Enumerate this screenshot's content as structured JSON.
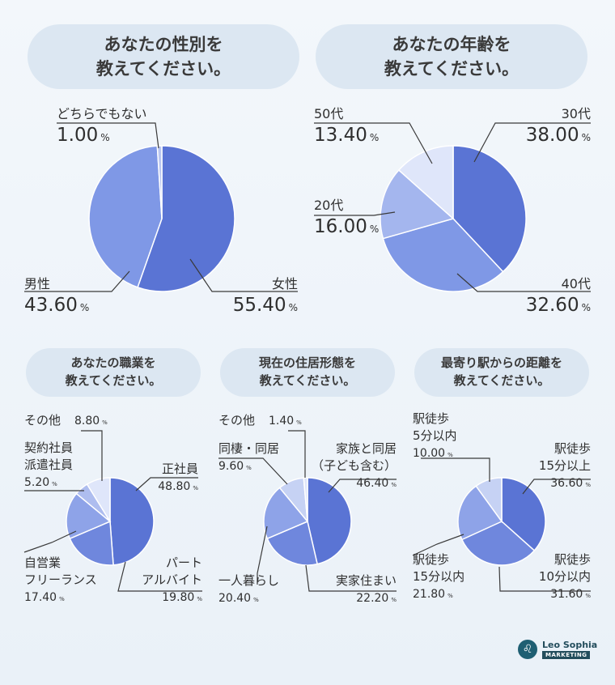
{
  "questions": {
    "gender": [
      "あなたの性別を",
      "教えてください。"
    ],
    "age": [
      "あなたの年齢を",
      "教えてください。"
    ],
    "job": [
      "あなたの職業を",
      "教えてください。"
    ],
    "housing": [
      "現在の住居形態を",
      "教えてください。"
    ],
    "distance": [
      "最寄り駅からの距離を",
      "教えてください。"
    ]
  },
  "brand": {
    "icon": "lion-head-icon",
    "name": "Leo Sophia",
    "tag": "MARKETING"
  },
  "percent_sign": "%",
  "colors": {
    "dark": "#5a74d4",
    "mid": "#7f98e6",
    "light": "#a4b6ee",
    "pale": "#c6d2f4",
    "lightest": "#dfe6fa"
  },
  "chart_data": [
    {
      "id": "gender",
      "type": "pie",
      "slices": [
        {
          "label": [
            "女性"
          ],
          "value": 55.4,
          "color": "#5a74d4"
        },
        {
          "label": [
            "男性"
          ],
          "value": 43.6,
          "color": "#7f98e6"
        },
        {
          "label": [
            "どちらでもない"
          ],
          "value": 1.0,
          "color": "#b9c6f0"
        }
      ]
    },
    {
      "id": "age",
      "type": "pie",
      "slices": [
        {
          "label": [
            "30代"
          ],
          "value": 38.0,
          "color": "#5a74d4"
        },
        {
          "label": [
            "40代"
          ],
          "value": 32.6,
          "color": "#7f98e6"
        },
        {
          "label": [
            "20代"
          ],
          "value": 16.0,
          "color": "#a4b6ee"
        },
        {
          "label": [
            "50代"
          ],
          "value": 13.4,
          "color": "#dfe6fa"
        }
      ]
    },
    {
      "id": "job",
      "type": "pie",
      "slices": [
        {
          "label": [
            "正社員"
          ],
          "value": 48.8,
          "color": "#5a74d4"
        },
        {
          "label": [
            "パート",
            "アルバイト"
          ],
          "value": 19.8,
          "color": "#6f87dd"
        },
        {
          "label": [
            "自営業",
            "フリーランス"
          ],
          "value": 17.4,
          "color": "#8ea3e8"
        },
        {
          "label": [
            "契約社員",
            "派遣社員"
          ],
          "value": 5.2,
          "color": "#aebdef"
        },
        {
          "label": [
            "その他"
          ],
          "value": 8.8,
          "color": "#dfe6fa"
        }
      ]
    },
    {
      "id": "housing",
      "type": "pie",
      "slices": [
        {
          "label": [
            "家族と同居",
            "（子ども含む）"
          ],
          "value": 46.4,
          "color": "#5a74d4"
        },
        {
          "label": [
            "実家住まい"
          ],
          "value": 22.2,
          "color": "#6f87dd"
        },
        {
          "label": [
            "一人暮らし"
          ],
          "value": 20.4,
          "color": "#8ea3e8"
        },
        {
          "label": [
            "同棲・同居"
          ],
          "value": 9.6,
          "color": "#c6d2f4"
        },
        {
          "label": [
            "その他"
          ],
          "value": 1.4,
          "color": "#dfe6fa"
        }
      ]
    },
    {
      "id": "distance",
      "type": "pie",
      "slices": [
        {
          "label": [
            "駅徒歩",
            "15分以上"
          ],
          "value": 36.6,
          "color": "#5a74d4"
        },
        {
          "label": [
            "駅徒歩",
            "10分以内"
          ],
          "value": 31.6,
          "color": "#6f87dd"
        },
        {
          "label": [
            "駅徒歩",
            "15分以内"
          ],
          "value": 21.8,
          "color": "#8ea3e8"
        },
        {
          "label": [
            "駅徒歩",
            "5分以内"
          ],
          "value": 10.0,
          "color": "#c6d2f4"
        }
      ]
    }
  ]
}
